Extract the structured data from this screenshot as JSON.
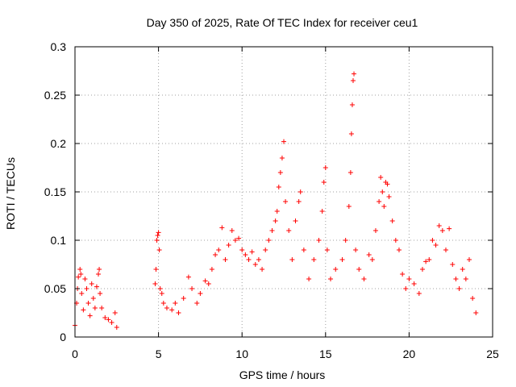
{
  "chart_data": {
    "type": "scatter",
    "title": "Day 350 of 2025, Rate Of TEC Index for receiver ceu1",
    "xlabel": "GPS time / hours",
    "ylabel": "ROTI / TECUs",
    "xlim": [
      0,
      25
    ],
    "ylim": [
      0,
      0.3
    ],
    "x_ticks": [
      0,
      5,
      10,
      15,
      20,
      25
    ],
    "y_ticks": [
      0,
      0.05,
      0.1,
      0.15,
      0.2,
      0.25,
      0.3
    ],
    "x_tick_labels": [
      "0",
      "5",
      "10",
      "15",
      "20",
      "25"
    ],
    "y_tick_labels": [
      "0",
      "0.05",
      "0.1",
      "0.15",
      "0.2",
      "0.25",
      "0.3"
    ],
    "grid": true,
    "marker": "+",
    "marker_color": "#ff0000",
    "series": [
      {
        "points": [
          [
            0.0,
            0.012
          ],
          [
            0.1,
            0.035
          ],
          [
            0.15,
            0.05
          ],
          [
            0.2,
            0.062
          ],
          [
            0.3,
            0.07
          ],
          [
            0.35,
            0.065
          ],
          [
            0.4,
            0.045
          ],
          [
            0.5,
            0.028
          ],
          [
            0.6,
            0.06
          ],
          [
            0.7,
            0.05
          ],
          [
            0.8,
            0.035
          ],
          [
            0.9,
            0.022
          ],
          [
            1.0,
            0.055
          ],
          [
            1.1,
            0.04
          ],
          [
            1.2,
            0.03
          ],
          [
            1.3,
            0.052
          ],
          [
            1.4,
            0.065
          ],
          [
            1.45,
            0.07
          ],
          [
            1.5,
            0.045
          ],
          [
            1.6,
            0.03
          ],
          [
            1.8,
            0.02
          ],
          [
            2.0,
            0.018
          ],
          [
            2.2,
            0.015
          ],
          [
            2.4,
            0.025
          ],
          [
            2.5,
            0.01
          ],
          [
            4.8,
            0.055
          ],
          [
            4.85,
            0.07
          ],
          [
            4.9,
            0.1
          ],
          [
            4.95,
            0.105
          ],
          [
            5.0,
            0.108
          ],
          [
            5.05,
            0.09
          ],
          [
            5.1,
            0.05
          ],
          [
            5.2,
            0.045
          ],
          [
            5.3,
            0.035
          ],
          [
            5.5,
            0.03
          ],
          [
            5.8,
            0.028
          ],
          [
            6.0,
            0.035
          ],
          [
            6.2,
            0.025
          ],
          [
            6.5,
            0.04
          ],
          [
            6.8,
            0.062
          ],
          [
            7.0,
            0.05
          ],
          [
            7.3,
            0.035
          ],
          [
            7.5,
            0.045
          ],
          [
            7.8,
            0.058
          ],
          [
            8.0,
            0.055
          ],
          [
            8.2,
            0.07
          ],
          [
            8.4,
            0.085
          ],
          [
            8.6,
            0.09
          ],
          [
            8.8,
            0.113
          ],
          [
            9.0,
            0.08
          ],
          [
            9.2,
            0.095
          ],
          [
            9.4,
            0.11
          ],
          [
            9.6,
            0.1
          ],
          [
            9.8,
            0.102
          ],
          [
            10.0,
            0.09
          ],
          [
            10.2,
            0.085
          ],
          [
            10.4,
            0.08
          ],
          [
            10.6,
            0.088
          ],
          [
            10.8,
            0.075
          ],
          [
            11.0,
            0.08
          ],
          [
            11.2,
            0.07
          ],
          [
            11.4,
            0.09
          ],
          [
            11.6,
            0.1
          ],
          [
            11.8,
            0.11
          ],
          [
            12.0,
            0.12
          ],
          [
            12.1,
            0.13
          ],
          [
            12.2,
            0.155
          ],
          [
            12.3,
            0.17
          ],
          [
            12.4,
            0.185
          ],
          [
            12.5,
            0.202
          ],
          [
            12.6,
            0.14
          ],
          [
            12.8,
            0.11
          ],
          [
            13.0,
            0.08
          ],
          [
            13.2,
            0.12
          ],
          [
            13.4,
            0.14
          ],
          [
            13.5,
            0.15
          ],
          [
            13.7,
            0.09
          ],
          [
            14.0,
            0.06
          ],
          [
            14.3,
            0.08
          ],
          [
            14.6,
            0.1
          ],
          [
            14.8,
            0.13
          ],
          [
            14.9,
            0.16
          ],
          [
            15.0,
            0.175
          ],
          [
            15.1,
            0.09
          ],
          [
            15.3,
            0.06
          ],
          [
            15.6,
            0.07
          ],
          [
            16.0,
            0.08
          ],
          [
            16.2,
            0.1
          ],
          [
            16.4,
            0.135
          ],
          [
            16.5,
            0.17
          ],
          [
            16.55,
            0.21
          ],
          [
            16.6,
            0.24
          ],
          [
            16.65,
            0.265
          ],
          [
            16.7,
            0.272
          ],
          [
            16.8,
            0.09
          ],
          [
            17.0,
            0.07
          ],
          [
            17.3,
            0.06
          ],
          [
            17.6,
            0.085
          ],
          [
            17.8,
            0.08
          ],
          [
            18.0,
            0.11
          ],
          [
            18.2,
            0.14
          ],
          [
            18.3,
            0.165
          ],
          [
            18.4,
            0.15
          ],
          [
            18.5,
            0.135
          ],
          [
            18.6,
            0.16
          ],
          [
            18.7,
            0.158
          ],
          [
            18.8,
            0.145
          ],
          [
            19.0,
            0.12
          ],
          [
            19.2,
            0.1
          ],
          [
            19.4,
            0.09
          ],
          [
            19.6,
            0.065
          ],
          [
            19.8,
            0.05
          ],
          [
            20.0,
            0.06
          ],
          [
            20.3,
            0.055
          ],
          [
            20.6,
            0.045
          ],
          [
            20.8,
            0.07
          ],
          [
            21.0,
            0.078
          ],
          [
            21.2,
            0.08
          ],
          [
            21.4,
            0.1
          ],
          [
            21.6,
            0.095
          ],
          [
            21.8,
            0.115
          ],
          [
            22.0,
            0.11
          ],
          [
            22.2,
            0.09
          ],
          [
            22.4,
            0.112
          ],
          [
            22.6,
            0.075
          ],
          [
            22.8,
            0.06
          ],
          [
            23.0,
            0.05
          ],
          [
            23.2,
            0.07
          ],
          [
            23.4,
            0.06
          ],
          [
            23.6,
            0.08
          ],
          [
            23.8,
            0.04
          ],
          [
            24.0,
            0.025
          ]
        ]
      }
    ]
  }
}
